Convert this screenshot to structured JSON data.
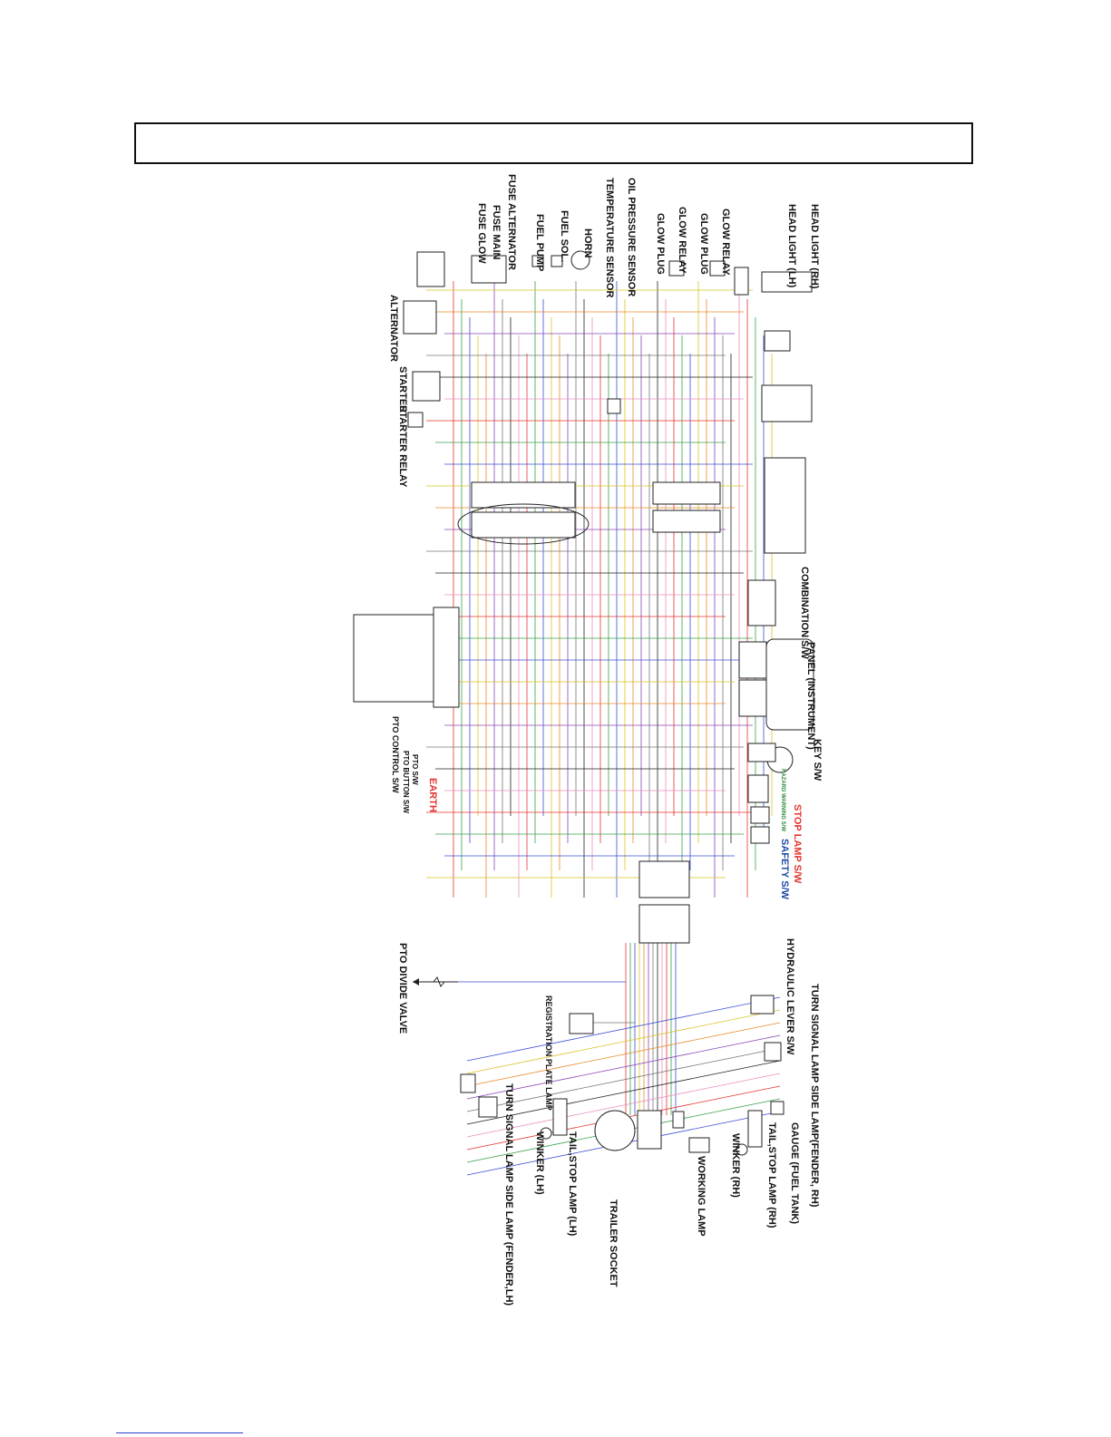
{
  "header": {
    "title": ""
  },
  "colors": {
    "red": "#e3342f",
    "green": "#3aa04a",
    "blue": "#3b4fd4",
    "yellow": "#d9c325",
    "orange": "#e88b2d",
    "purple": "#8a46b5",
    "gray": "#777777",
    "black": "#222222",
    "pink": "#e98fbf"
  },
  "labels": {
    "head_light_rh": "HEAD LIGHT (RH)",
    "head_light_lh": "HEAD LIGHT (LH)",
    "glow_relay_1": "GLOW RELAY",
    "glow_plug_1": "GLOW PLUG",
    "glow_relay_2": "GLOW RELAY",
    "glow_plug_2": "GLOW PLUG",
    "oil_pressure": "OIL PRESSURE SENSOR",
    "temperature": "TEMPERATURE SENSOR",
    "horn": "HORN",
    "fuel_sol": "FUEL SOL.",
    "fuel_pump": "FUEL PUMP",
    "fuse_alternator": "FUSE ALTERNATOR",
    "fuse_main": "FUSE MAIN",
    "fuse_glow": "FUSE GLOW",
    "alternator": "ALTERNATOR",
    "starter": "STARTER",
    "starter_relay": "STARTER RELAY",
    "combination_sw": "COMBINATION S/W",
    "panel": "PANEL (INSTRUMENT)",
    "key_sw": "KEY S/W",
    "hazard_sw": "HAZARD WARNING S/W",
    "stop_lamp_sw": "STOP LAMP S/W",
    "safety_sw": "SAFETY S/W",
    "earth": "EARTH",
    "pto_sw": "PTO S/W",
    "pto_button_sw": "PTO BUTTON S/W",
    "pto_control_sw": "PTO CONTROL S/W",
    "hydraulic_lever_sw": "HYDRAULIC LEVER S/W",
    "turn_signal_rh": "TURN SIGNAL LAMP SIDE LAMP(FENDER, RH)",
    "pto_divide_valve": "PTO DIVIDE VALVE",
    "registration_plate_lamp": "REGISTRATION PLATE LAMP",
    "gauge_fuel_tank": "GAUGE (FUEL TANK)",
    "tail_stop_rh": "TAIL,STOP LAMP (RH)",
    "winker_rh": "WINKER (RH)",
    "working_lamp": "WORKING LAMP",
    "trailer_socket": "TRAILER SOCKET",
    "tail_stop_lh": "TAIL,STOP LAMP (LH)",
    "winker_lh": "WINKER (LH)",
    "turn_signal_lh": "TURN SIGNAL LAMP SIDE LAMP (FENDER,LH)"
  }
}
